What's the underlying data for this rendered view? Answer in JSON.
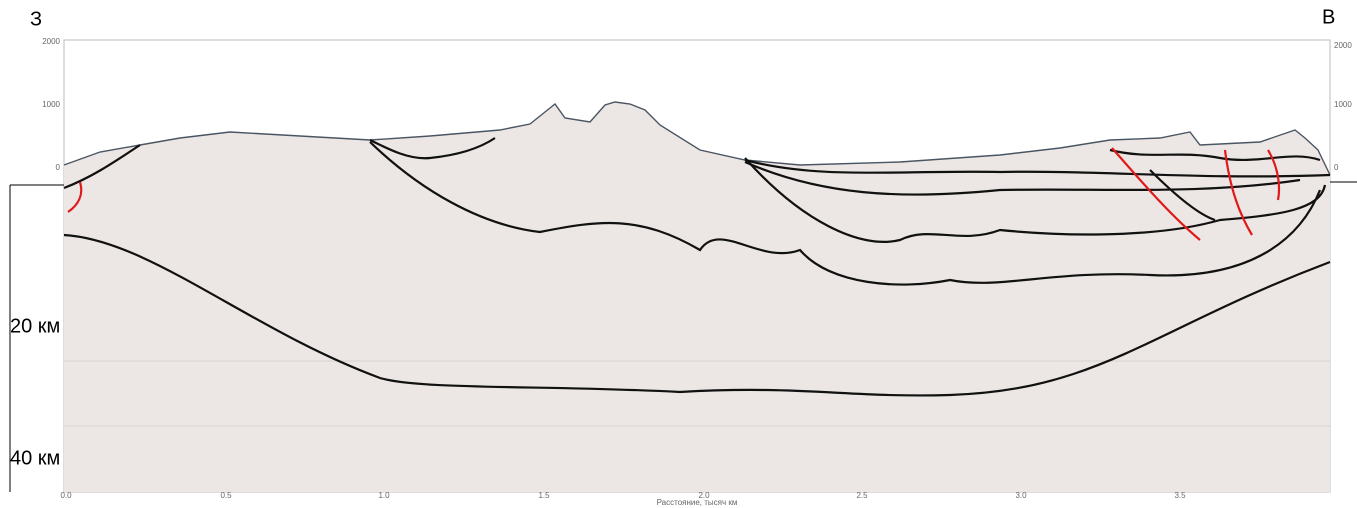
{
  "profile": {
    "west_label": "З",
    "east_label": "В",
    "left_elevation_ticks": [
      "2000",
      "1000",
      "0"
    ],
    "right_elevation_ticks": [
      "2000",
      "1000",
      "0"
    ],
    "depth_labels": [
      "20 км",
      "40 км"
    ],
    "x_ticks": [
      "0.0",
      "0.5",
      "1.0",
      "1.5",
      "2.0",
      "2.5",
      "3.0",
      "3.5"
    ],
    "x_axis_label": "Расстояние, тысяч км"
  }
}
